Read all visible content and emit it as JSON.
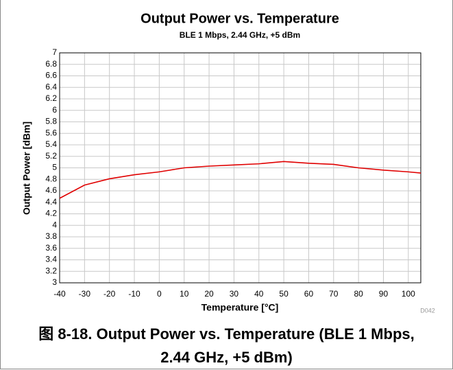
{
  "chart_data": {
    "type": "line",
    "title": "Output Power vs. Temperature",
    "subtitle": "BLE 1 Mbps, 2.44 GHz, +5 dBm",
    "x_label": "Temperature [°C]",
    "y_label": "Output Power [dBm]",
    "figure_id": "D042",
    "x": [
      -40,
      -30,
      -20,
      -10,
      0,
      10,
      20,
      30,
      40,
      50,
      60,
      70,
      80,
      90,
      100,
      105
    ],
    "series": [
      {
        "name": "Output Power",
        "color": "#e00000",
        "values": [
          4.47,
          4.7,
          4.81,
          4.88,
          4.93,
          5.0,
          5.03,
          5.05,
          5.07,
          5.11,
          5.08,
          5.06,
          5.0,
          4.96,
          4.93,
          4.91
        ]
      }
    ],
    "xlim": [
      -40,
      105
    ],
    "xticks": [
      -40,
      -30,
      -20,
      -10,
      0,
      10,
      20,
      30,
      40,
      50,
      60,
      70,
      80,
      90,
      100
    ],
    "ylim": [
      3,
      7
    ],
    "yticks": [
      3,
      3.2,
      3.4,
      3.6,
      3.8,
      4,
      4.2,
      4.4,
      4.6,
      4.8,
      5,
      5.2,
      5.4,
      5.6,
      5.8,
      6,
      6.2,
      6.4,
      6.6,
      6.8,
      7
    ],
    "grid": true
  },
  "caption": "图 8-18. Output Power vs. Temperature (BLE 1 Mbps, 2.44 GHz, +5 dBm)"
}
